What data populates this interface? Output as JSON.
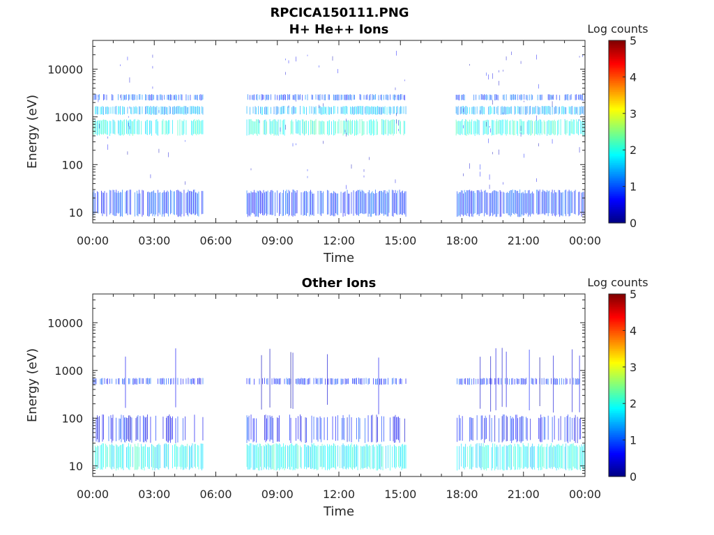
{
  "figure_title": "RPCICA150111.PNG",
  "chart_data": [
    {
      "type": "heatmap",
      "title": "H+ He++ Ions",
      "xlabel": "Time",
      "ylabel": "Energy (eV)",
      "y_scale": "log",
      "ylim": [
        6,
        40000
      ],
      "y_ticks": [
        10,
        100,
        1000,
        10000
      ],
      "y_tick_labels": [
        "10",
        "100",
        "1000",
        "10000"
      ],
      "x_ticks_hours": [
        0,
        3,
        6,
        9,
        12,
        15,
        18,
        21,
        24
      ],
      "x_tick_labels": [
        "00:00",
        "03:00",
        "06:00",
        "09:00",
        "12:00",
        "15:00",
        "18:00",
        "21:00",
        "00:00"
      ],
      "colorbar": {
        "label": "Log counts",
        "range": [
          0,
          5
        ],
        "ticks": [
          0,
          1,
          2,
          3,
          4,
          5
        ],
        "colormap": "jet"
      },
      "data_intervals_hours": [
        [
          0.0,
          5.4
        ],
        [
          7.5,
          15.3
        ],
        [
          17.7,
          24.0
        ]
      ],
      "bands": [
        {
          "energy_ev": [
            8,
            30
          ],
          "log_counts": 0.9,
          "density": 0.8
        },
        {
          "energy_ev": [
            400,
            900
          ],
          "log_counts": 2.0,
          "density": 0.75
        },
        {
          "energy_ev": [
            1100,
            1700
          ],
          "log_counts": 1.5,
          "density": 0.7
        },
        {
          "energy_ev": [
            2200,
            3000
          ],
          "log_counts": 1.0,
          "density": 0.6
        },
        {
          "energy_ev": [
            30,
            20000
          ],
          "log_counts": 0.5,
          "density": 0.12
        }
      ]
    },
    {
      "type": "heatmap",
      "title": "Other Ions",
      "xlabel": "Time",
      "ylabel": "Energy (eV)",
      "y_scale": "log",
      "ylim": [
        6,
        40000
      ],
      "y_ticks": [
        10,
        100,
        1000,
        10000
      ],
      "y_tick_labels": [
        "10",
        "100",
        "1000",
        "10000"
      ],
      "x_ticks_hours": [
        0,
        3,
        6,
        9,
        12,
        15,
        18,
        21,
        24
      ],
      "x_tick_labels": [
        "00:00",
        "03:00",
        "06:00",
        "09:00",
        "12:00",
        "15:00",
        "18:00",
        "21:00",
        "00:00"
      ],
      "colorbar": {
        "label": "Log counts",
        "range": [
          0,
          5
        ],
        "ticks": [
          0,
          1,
          2,
          3,
          4,
          5
        ],
        "colormap": "jet"
      },
      "data_intervals_hours": [
        [
          0.0,
          5.4
        ],
        [
          7.5,
          15.3
        ],
        [
          17.7,
          24.0
        ]
      ],
      "bands": [
        {
          "energy_ev": [
            8,
            30
          ],
          "log_counts": 1.9,
          "density": 0.85
        },
        {
          "energy_ev": [
            30,
            120
          ],
          "log_counts": 0.7,
          "density": 0.4
        },
        {
          "energy_ev": [
            500,
            700
          ],
          "log_counts": 0.8,
          "density": 0.55
        },
        {
          "energy_ev": [
            120,
            3000
          ],
          "log_counts": 0.4,
          "density": 0.06
        }
      ]
    }
  ]
}
